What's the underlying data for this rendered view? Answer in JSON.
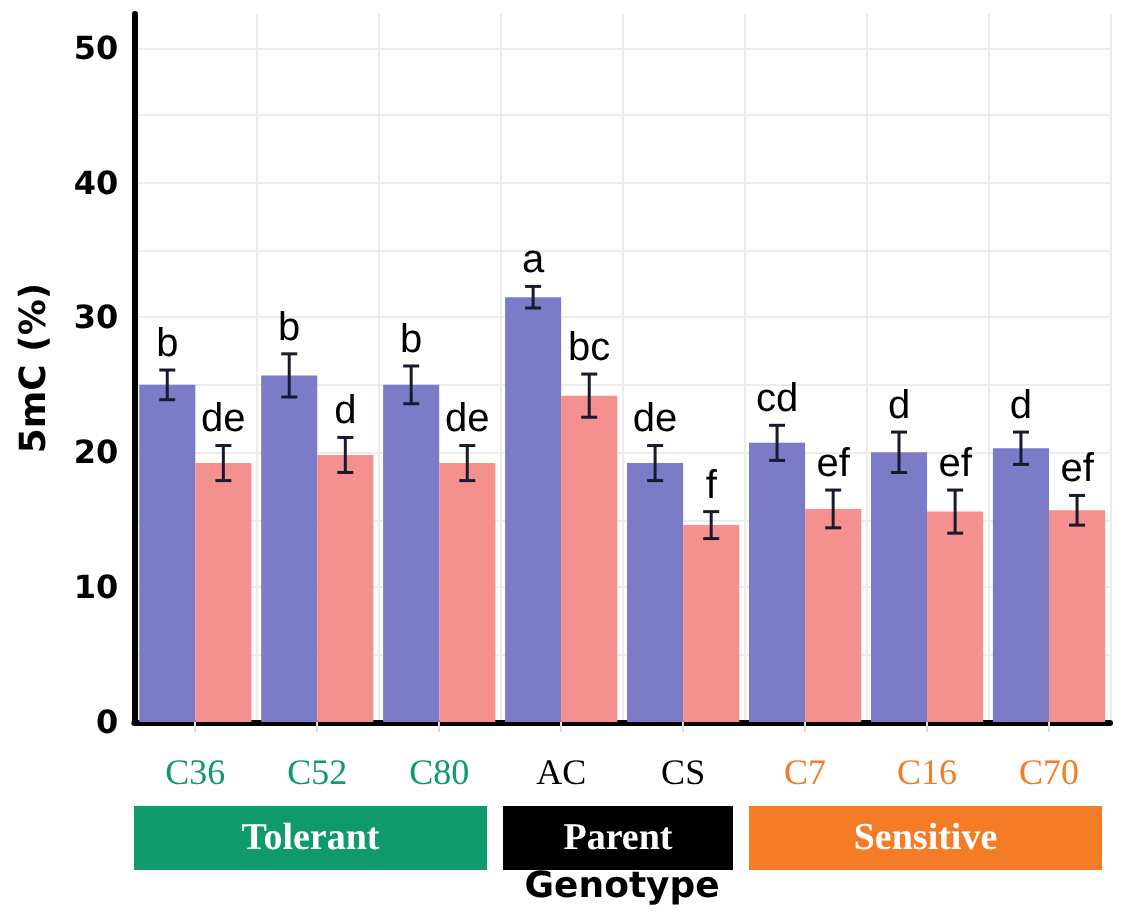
{
  "chart_data": {
    "type": "bar",
    "xlabel": "Genotype",
    "ylabel": "5mC (%)",
    "categories": [
      "C36",
      "C52",
      "C80",
      "AC",
      "CS",
      "C7",
      "C16",
      "C70"
    ],
    "series": [
      {
        "color": "#7b7bc8",
        "values": [
          25.0,
          25.7,
          25.0,
          31.5,
          19.2,
          20.7,
          20.0,
          20.3
        ],
        "errors": [
          1.1,
          1.6,
          1.4,
          0.8,
          1.3,
          1.3,
          1.5,
          1.2
        ],
        "value_labels": [
          "b",
          "b",
          "b",
          "a",
          "de",
          "cd",
          "d",
          "d"
        ]
      },
      {
        "color": "#f4908e",
        "values": [
          19.2,
          19.8,
          19.2,
          24.2,
          14.6,
          15.8,
          15.6,
          15.7
        ],
        "errors": [
          1.3,
          1.3,
          1.3,
          1.6,
          1.0,
          1.4,
          1.6,
          1.1
        ],
        "value_labels": [
          "de",
          "d",
          "de",
          "bc",
          "f",
          "ef",
          "ef",
          "ef"
        ]
      }
    ],
    "annotations": [
      "Tolerant",
      "Parent",
      "Sensitive"
    ],
    "ylim": [
      0,
      52.5
    ],
    "yticks": [
      0,
      {
        "value": 5,
        "label": null
      },
      10,
      {
        "value": 15,
        "label": null
      },
      20,
      {
        "value": 25,
        "label": null
      },
      30,
      {
        "value": 35,
        "label": null
      },
      40,
      {
        "value": 45,
        "label": null
      },
      50
    ],
    "grid": true
  }
}
